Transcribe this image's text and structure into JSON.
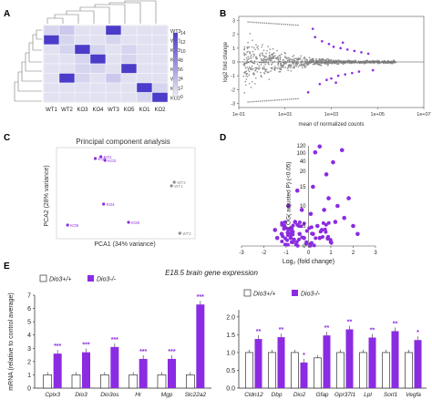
{
  "panel_letters": {
    "a": "A",
    "b": "B",
    "c": "C",
    "d": "D",
    "e": "E"
  },
  "colors": {
    "purple": "#8b2be2",
    "light_purple": "#b67ce6",
    "grey": "#8c8c8c",
    "heat_low": "#eceef5",
    "heat_high": "#4b3cc9"
  },
  "chart_data": [
    {
      "id": "A",
      "type": "heatmap",
      "title": "",
      "categories": [
        "WT1",
        "WT2",
        "KO3",
        "KO4",
        "WT3",
        "KO5",
        "KO1",
        "KO2"
      ],
      "row_labels": [
        "WT3",
        "WT1",
        "KO3",
        "KO4",
        "KO5",
        "WT2",
        "KO1",
        "KO2"
      ],
      "colorbar_ticks": [
        "14",
        "12",
        "10",
        "8",
        "6",
        "4",
        "2",
        "0"
      ],
      "values": [
        [
          2,
          3,
          1,
          1,
          14,
          1,
          1,
          1
        ],
        [
          14,
          2,
          1,
          1,
          2,
          1,
          1,
          1
        ],
        [
          1,
          2,
          14,
          2,
          1,
          2,
          1,
          1
        ],
        [
          1,
          1,
          2,
          14,
          1,
          2,
          1,
          1
        ],
        [
          1,
          1,
          2,
          2,
          1,
          14,
          1,
          1
        ],
        [
          1,
          14,
          2,
          1,
          3,
          1,
          1,
          1
        ],
        [
          1,
          1,
          1,
          1,
          1,
          1,
          14,
          2
        ],
        [
          1,
          1,
          1,
          1,
          1,
          1,
          2,
          14
        ]
      ]
    },
    {
      "id": "B",
      "type": "scatter",
      "title": "",
      "xlabel": "mean of normalized counts",
      "ylabel": "log2 fold change",
      "xticks": [
        "1e-01",
        "1e+01",
        "1e+03",
        "1e+05",
        "1e+07"
      ],
      "yticks": [
        "3",
        "2",
        "1",
        "0",
        "-1",
        "-2",
        "-3"
      ],
      "xlim": [
        -1,
        7
      ],
      "ylim": [
        -3.3,
        3.3
      ],
      "x_scale": "log10",
      "series": [
        {
          "color": "#8b2be2",
          "points": [
            [
              2.3,
              1.8
            ],
            [
              2.6,
              1.5
            ],
            [
              2.9,
              1.3
            ],
            [
              3.1,
              1.1
            ],
            [
              3.4,
              1.0
            ],
            [
              3.7,
              0.9
            ],
            [
              4.0,
              0.8
            ],
            [
              4.3,
              0.7
            ],
            [
              2.5,
              -1.6
            ],
            [
              2.8,
              -1.3
            ],
            [
              3.0,
              -1.2
            ],
            [
              3.3,
              -1.0
            ],
            [
              3.6,
              -0.9
            ],
            [
              3.9,
              -0.8
            ],
            [
              4.2,
              -0.7
            ],
            [
              2.2,
              2.4
            ],
            [
              3.5,
              1.4
            ],
            [
              4.6,
              0.6
            ],
            [
              4.8,
              -0.6
            ],
            [
              3.2,
              -1.5
            ],
            [
              2.0,
              -2.2
            ]
          ]
        }
      ]
    },
    {
      "id": "C",
      "type": "scatter",
      "title": "Principal component analysis",
      "xlabel": "PCA1 (34% variance)",
      "ylabel": "PCA2 (28% variance)",
      "series": [
        {
          "color": "#8b2be2",
          "points": [
            {
              "x": 0.32,
              "y": 0.9,
              "label": "KO1"
            },
            {
              "x": 0.35,
              "y": 0.86,
              "label": "KO2"
            },
            {
              "x": 0.28,
              "y": 0.88,
              "label": "KO3"
            },
            {
              "x": 0.34,
              "y": 0.38,
              "label": "KO4"
            },
            {
              "x": 0.08,
              "y": 0.15,
              "label": "KO5"
            },
            {
              "x": 0.52,
              "y": 0.18,
              "label": "KO6"
            }
          ]
        },
        {
          "color": "#8c8c8c",
          "points": [
            {
              "x": 0.83,
              "y": 0.58,
              "label": "WT1"
            },
            {
              "x": 0.89,
              "y": 0.06,
              "label": "WT2"
            },
            {
              "x": 0.85,
              "y": 0.62,
              "label": "WT3"
            }
          ]
        }
      ]
    },
    {
      "id": "D",
      "type": "scatter",
      "title": "",
      "xlabel": "Log₂ (fold change)",
      "ylabel": "LOG( adjusted P) (<0.05)",
      "xticks": [
        "-3",
        "-2",
        "-1",
        "0",
        "1",
        "2",
        "3"
      ],
      "yticks": [
        "120",
        "100",
        "40",
        "20",
        "15",
        "10",
        "5",
        "0"
      ],
      "xlim": [
        -3,
        3
      ],
      "points": [
        [
          0.5,
          118
        ],
        [
          1.5,
          108
        ],
        [
          0.3,
          102
        ],
        [
          1.1,
          38
        ],
        [
          -0.9,
          10
        ],
        [
          -0.5,
          14
        ],
        [
          0.8,
          19
        ],
        [
          0.2,
          15
        ],
        [
          0.9,
          12
        ],
        [
          -1.5,
          4
        ],
        [
          -1.1,
          5
        ],
        [
          -0.6,
          6
        ],
        [
          -0.4,
          3
        ],
        [
          -0.2,
          2
        ],
        [
          0.4,
          5
        ],
        [
          0.6,
          4
        ],
        [
          1.2,
          6
        ],
        [
          1.6,
          7
        ],
        [
          2.0,
          5
        ],
        [
          -0.8,
          2
        ],
        [
          -1.2,
          3
        ],
        [
          0.7,
          9
        ],
        [
          1.3,
          10
        ],
        [
          0.1,
          8
        ],
        [
          -0.3,
          9
        ],
        [
          1.8,
          12
        ],
        [
          0.2,
          3
        ],
        [
          0.5,
          2
        ],
        [
          -0.7,
          1
        ],
        [
          1.0,
          1
        ],
        [
          2.2,
          3
        ],
        [
          -1.4,
          2
        ]
      ]
    },
    {
      "id": "E-left",
      "type": "bar",
      "title": "E18.5 brain gene expression",
      "ylabel": "mRNA (relative to control average)",
      "categories": [
        "Cplx3",
        "Dio3",
        "Dio3os",
        "Hr",
        "Mgp",
        "Slc22a2"
      ],
      "yticks": [
        "0",
        "1",
        "2",
        "3",
        "4",
        "5",
        "6",
        "7"
      ],
      "ylim": [
        0,
        7
      ],
      "series": [
        {
          "name": "Dio3+/+",
          "values": [
            1,
            1,
            1,
            1,
            1,
            1
          ]
        },
        {
          "name": "Dio3-/-",
          "values": [
            2.6,
            2.7,
            3.1,
            2.2,
            2.2,
            6.3
          ]
        }
      ],
      "significance": [
        "***",
        "***",
        "***",
        "***",
        "***",
        "***"
      ]
    },
    {
      "id": "E-right",
      "type": "bar",
      "categories": [
        "Cldn12",
        "Dbp",
        "Dio2",
        "Gfap",
        "Gpr37l1",
        "Lpl",
        "Sorl1",
        "Vegfa"
      ],
      "yticks": [
        "0.0",
        "0.5",
        "1.0",
        "1.5",
        "2.0"
      ],
      "ylim": [
        0,
        2.2
      ],
      "series": [
        {
          "name": "Dio3+/+",
          "values": [
            1,
            1,
            1,
            0.85,
            1,
            1,
            1,
            1
          ]
        },
        {
          "name": "Dio3-/-",
          "values": [
            1.38,
            1.43,
            0.72,
            1.48,
            1.65,
            1.42,
            1.6,
            1.35
          ]
        }
      ],
      "significance": [
        "**",
        "**",
        "*",
        "**",
        "**",
        "**",
        "**",
        "*"
      ]
    }
  ],
  "legend": {
    "wt": "Dio3+/+",
    "ko": "Dio3-/-"
  }
}
